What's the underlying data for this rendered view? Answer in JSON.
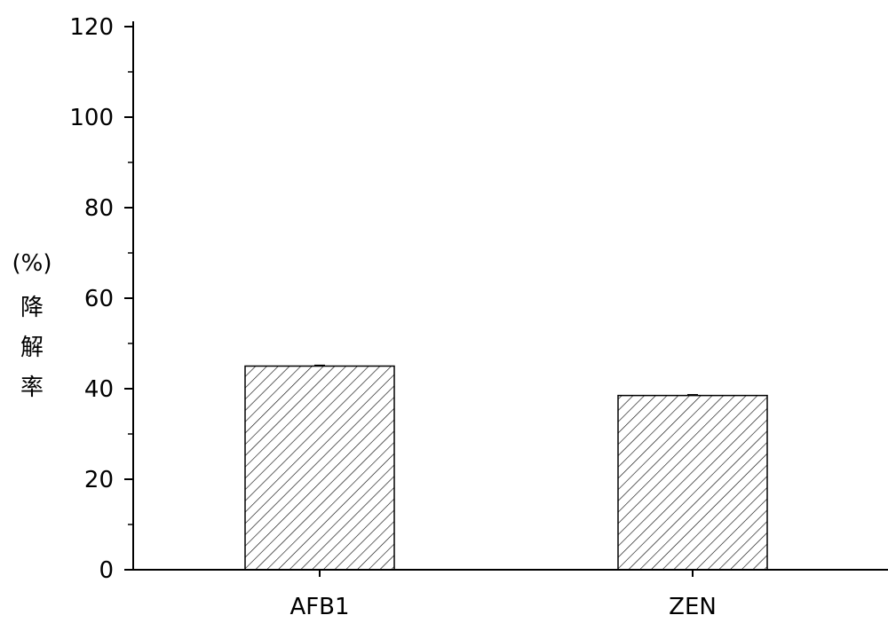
{
  "chart_data": {
    "type": "bar",
    "categories": [
      "AFB1",
      "ZEN"
    ],
    "values": [
      45,
      38.5
    ],
    "title": "",
    "xlabel": "",
    "ylabel_lines": [
      "(%)",
      "降",
      "解",
      "率"
    ],
    "ylim": [
      0,
      120
    ],
    "y_ticks": [
      0,
      20,
      40,
      60,
      80,
      100,
      120
    ],
    "y_minor_step": 10,
    "grid": false,
    "bar_fill": "hatched-diagonal",
    "colors": {
      "bar_fill": "#ffffff",
      "bar_stroke": "#000000",
      "hatch": "#000000",
      "axis": "#000000"
    }
  }
}
